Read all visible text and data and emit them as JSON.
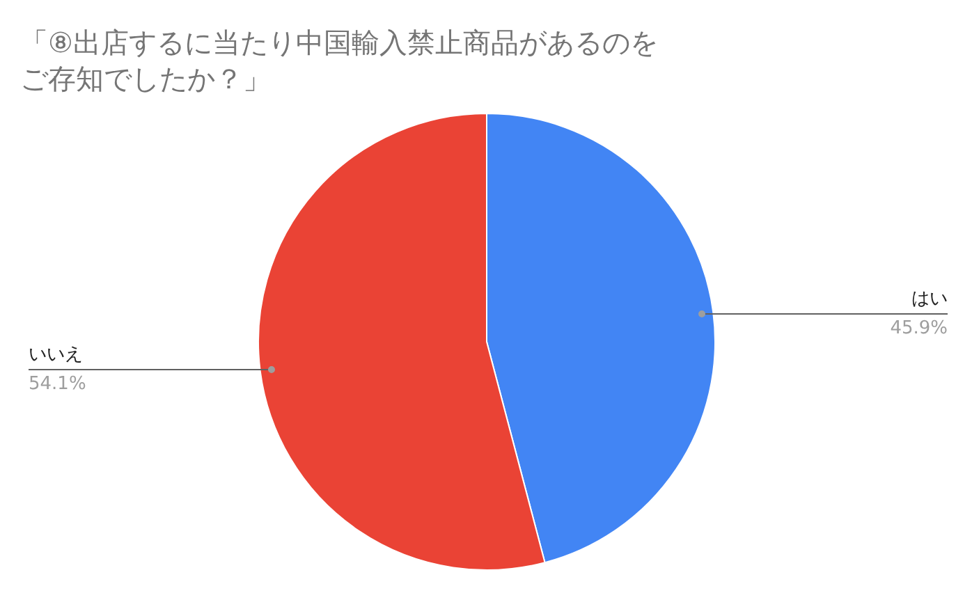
{
  "chart_data": {
    "type": "pie",
    "title": "「⑧出店するに当たり中国輸入禁止商品があるのをご存知でしたか？」",
    "categories": [
      "はい",
      "いいえ"
    ],
    "values": [
      45.9,
      54.1
    ],
    "colors": [
      "#4285f4",
      "#ea4335"
    ],
    "value_labels": [
      "45.9%",
      "54.1%"
    ]
  }
}
